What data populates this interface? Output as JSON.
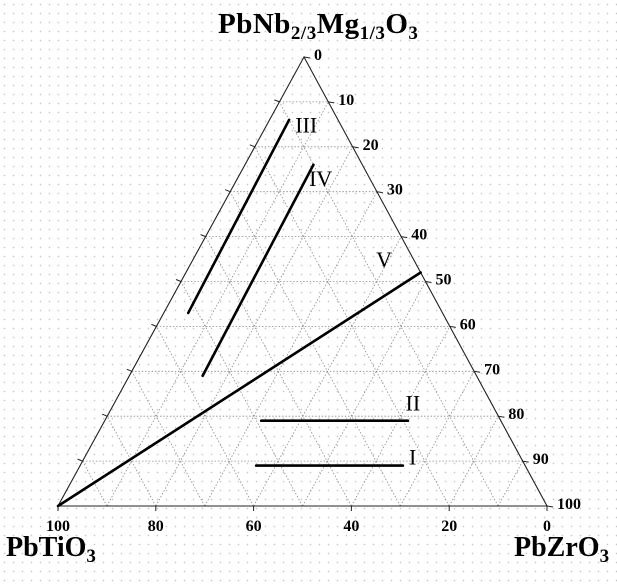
{
  "vertices": {
    "top": {
      "base": "PbNb",
      "sub1": "2/3",
      "mid": "Mg",
      "sub2": "1/3",
      "tail": "O",
      "sub3": "3"
    },
    "left": {
      "base": "PbTiO",
      "sub": "3"
    },
    "right": {
      "base": "PbZrO",
      "sub": "3"
    }
  },
  "right_edge_ticks": [
    "0",
    "10",
    "20",
    "30",
    "40",
    "50",
    "60",
    "70",
    "80",
    "90",
    "100"
  ],
  "bottom_edge_ticks": [
    "100",
    "80",
    "60",
    "40",
    "20",
    "0"
  ],
  "lines": [
    {
      "label": "I"
    },
    {
      "label": "II"
    },
    {
      "label": "III"
    },
    {
      "label": "IV"
    },
    {
      "label": "V"
    }
  ]
}
